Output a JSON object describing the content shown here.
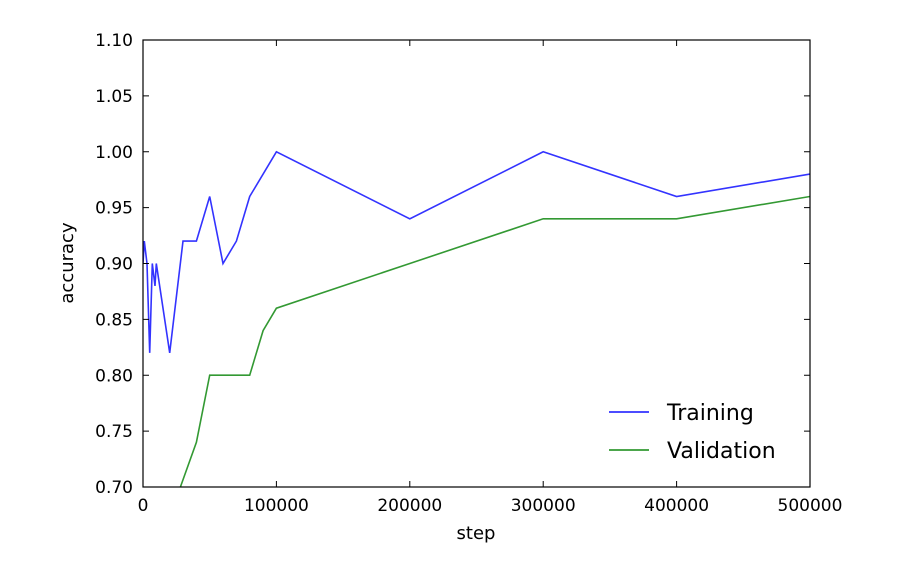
{
  "chart_data": {
    "type": "line",
    "xlabel": "step",
    "ylabel": "accuracy",
    "xlim": [
      0,
      500000
    ],
    "ylim": [
      0.7,
      1.1
    ],
    "xticks": [
      0,
      100000,
      200000,
      300000,
      400000,
      500000
    ],
    "xtick_labels": [
      "0",
      "100000",
      "200000",
      "300000",
      "400000",
      "500000"
    ],
    "yticks": [
      0.7,
      0.75,
      0.8,
      0.85,
      0.9,
      0.95,
      1.0,
      1.05,
      1.1
    ],
    "ytick_labels": [
      "0.70",
      "0.75",
      "0.80",
      "0.85",
      "0.90",
      "0.95",
      "1.00",
      "1.05",
      "1.10"
    ],
    "grid": false,
    "legend_position": "bottom-right",
    "series": [
      {
        "name": "Training",
        "color": "#3333ff",
        "points": [
          [
            0,
            0.9
          ],
          [
            1000,
            0.92
          ],
          [
            3000,
            0.9
          ],
          [
            5000,
            0.82
          ],
          [
            7000,
            0.9
          ],
          [
            9000,
            0.88
          ],
          [
            10000,
            0.9
          ],
          [
            20000,
            0.82
          ],
          [
            30000,
            0.92
          ],
          [
            40000,
            0.92
          ],
          [
            50000,
            0.96
          ],
          [
            60000,
            0.9
          ],
          [
            70000,
            0.92
          ],
          [
            80000,
            0.96
          ],
          [
            100000,
            1.0
          ],
          [
            200000,
            0.94
          ],
          [
            300000,
            1.0
          ],
          [
            400000,
            0.96
          ],
          [
            500000,
            0.98
          ]
        ]
      },
      {
        "name": "Validation",
        "color": "#339933",
        "points": [
          [
            28000,
            0.7
          ],
          [
            40000,
            0.74
          ],
          [
            50000,
            0.8
          ],
          [
            60000,
            0.8
          ],
          [
            70000,
            0.8
          ],
          [
            80000,
            0.8
          ],
          [
            90000,
            0.84
          ],
          [
            100000,
            0.86
          ],
          [
            200000,
            0.9
          ],
          [
            300000,
            0.94
          ],
          [
            400000,
            0.94
          ],
          [
            500000,
            0.96
          ]
        ]
      }
    ]
  }
}
